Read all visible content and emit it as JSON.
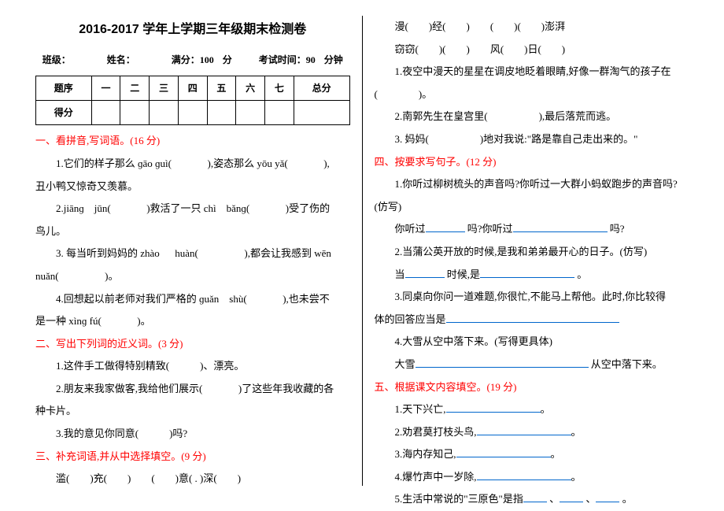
{
  "title": "2016-2017 学年上学期三年级期末检测卷",
  "info": {
    "class_label": "班级：",
    "name_label": "姓名：",
    "full_score": "满分：100 分",
    "exam_time": "考试时间：90 分钟"
  },
  "score_table": {
    "row1": [
      "题序",
      "一",
      "二",
      "三",
      "四",
      "五",
      "六",
      "七",
      "总分"
    ],
    "row2_label": "得分"
  },
  "s1": {
    "head": "一、看拼音,写词语。(16 分)",
    "q1a": "1.它们的样子那么 ɡāo ɡuì(",
    "q1b": "),姿态那么 yōu yǎ(",
    "q1c": "),",
    "q1d": "丑小鸭又惊奇又羡慕。",
    "q2a": "2.jiānɡ　jūn(",
    "q2b": ")救活了一只 chì　bǎnɡ(",
    "q2c": ")受了伤的",
    "q2d": "鸟儿。",
    "q3a": "3. 每当听到妈妈的 zhào 　 huàn(",
    "q3b": "),都会让我感到 wēn",
    "q3c": "nuǎn(",
    "q3d": ")。",
    "q4a": "4.回想起以前老师对我们严格的 ɡuǎn　shù(",
    "q4b": "),也未尝不",
    "q4c": "是一种 xìnɡ fú(",
    "q4d": ")。"
  },
  "s2": {
    "head": "二、写出下列词的近义词。(3 分)",
    "q1": "1.这件手工做得特别精致(　　　)、漂亮。",
    "q2a": "2.朋友来我家做客,我给他们展示(",
    "q2b": ")了这些年我收藏的各",
    "q2c": "种卡片。",
    "q3": "3.我的意见你同意(　　　)吗?"
  },
  "s3": {
    "head": "三、补充词语,并从中选择填空。(9 分)",
    "line1": "滥(　　)充(　　)　　(　　)意( . )深(　　)"
  },
  "s3_right": {
    "line2": "漫(　　)经(　　)　　(　　)(　　)澎湃",
    "line3": "窃窃(　　)(　　)　　风(　　)日(　　)",
    "q1a": "1.夜空中漫天的星星在调皮地眨着眼睛,好像一群淘气的孩子在",
    "q1b": "(　　　　)。",
    "q2": "2.南郭先生在皇宫里(　　　　　),最后落荒而逃。",
    "q3": "3. 妈妈(　　　　　)地对我说:\"路是靠自己走出来的。\""
  },
  "s4": {
    "head": "四、按要求写句子。(12 分)",
    "q1a": "1.你听过柳树梳头的声音吗?你听过一大群小蚂蚁跑步的声音吗?",
    "q1b": "(仿写)",
    "q1c_a": "你听过",
    "q1c_b": "吗?你听过",
    "q1c_c": "吗?",
    "q2a": "2.当蒲公英开放的时候,是我和弟弟最开心的日子。(仿写)",
    "q2b_a": "当",
    "q2b_b": "时候,是",
    "q2b_c": "。",
    "q3a": "3.同桌向你问一道难题,你很忙,不能马上帮他。此时,你比较得",
    "q3b": "体的回答应当是",
    "q4a": "4.大雪从空中落下来。(写得更具体)",
    "q4b_a": "大雪",
    "q4b_b": "从空中落下来。"
  },
  "s5": {
    "head": "五、根据课文内容填空。(19 分)",
    "q1": "1.天下兴亡,",
    "q2": "2.劝君莫打枝头鸟,",
    "q3": "3.海内存知己,",
    "q4": "4.爆竹声中一岁除,",
    "q5a": "5.生活中常说的\"三原色\"是指",
    "q5b": "、",
    "q5c": "、",
    "q5d": "。"
  },
  "punct": {
    "period": "。",
    "comma_stop": "。"
  }
}
